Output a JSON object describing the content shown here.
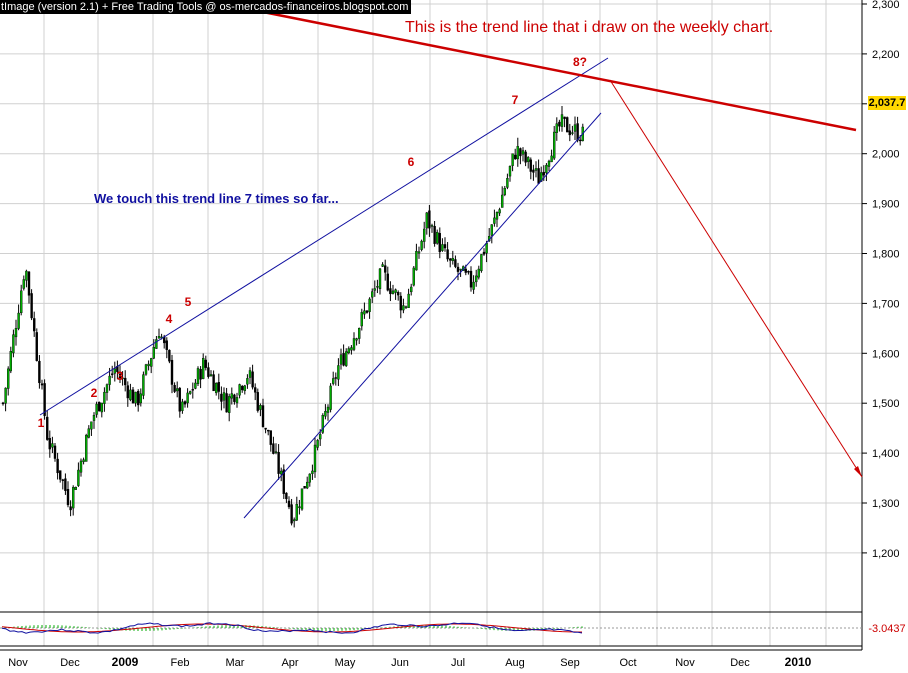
{
  "header": {
    "watermark": "tImage (version 2.1) + Free Trading Tools @ os-mercados-financeiros.blogspot.com"
  },
  "annotations": {
    "trendline_note": "This is the trend line that i draw on the weekly chart.",
    "touch_note": "We touch this trend line 7 times so far...",
    "touch_labels": [
      "1",
      "2",
      "3",
      "4",
      "5",
      "6",
      "7",
      "8?"
    ]
  },
  "price_label": "2,037.7",
  "oscillator_label": "-3.0437",
  "colors": {
    "annotation_red": "#cc0000",
    "trendline_blue": "#1010a0",
    "price_box": "#ffd700",
    "candle_up": "#00aa00",
    "candle_down": "#000000"
  },
  "chart_data": {
    "type": "candlestick",
    "x_axis": {
      "labels": [
        "Nov",
        "Dec",
        "2009",
        "Feb",
        "Mar",
        "Apr",
        "May",
        "Jun",
        "Jul",
        "Aug",
        "Sep",
        "Oct",
        "Nov",
        "Dec",
        "2010"
      ],
      "bold_labels": [
        "2009",
        "2010"
      ]
    },
    "y_axis": {
      "labels": [
        "2,300",
        "2,200",
        "2,100",
        "2,000",
        "1,900",
        "1,800",
        "1,700",
        "1,600",
        "1,500",
        "1,400",
        "1,300",
        "1,200"
      ],
      "ylim": [
        1140,
        2300
      ],
      "position": "right"
    },
    "grid": true,
    "series_points": [
      {
        "date": "Nov",
        "close": 1500
      },
      {
        "date": "Nov",
        "close": 1780
      },
      {
        "date": "Nov",
        "close": 1430
      },
      {
        "date": "Dec",
        "close": 1300
      },
      {
        "date": "Dec",
        "close": 1470
      },
      {
        "date": "Dec",
        "close": 1570
      },
      {
        "date": "2009",
        "close": 1500
      },
      {
        "date": "2009",
        "close": 1650
      },
      {
        "date": "2009",
        "close": 1480
      },
      {
        "date": "Feb",
        "close": 1580
      },
      {
        "date": "Feb",
        "close": 1500
      },
      {
        "date": "Feb",
        "close": 1560
      },
      {
        "date": "Mar",
        "close": 1420
      },
      {
        "date": "Mar",
        "close": 1270
      },
      {
        "date": "Mar",
        "close": 1400
      },
      {
        "date": "Apr",
        "close": 1570
      },
      {
        "date": "Apr",
        "close": 1660
      },
      {
        "date": "May",
        "close": 1760
      },
      {
        "date": "May",
        "close": 1690
      },
      {
        "date": "Jun",
        "close": 1870
      },
      {
        "date": "Jun",
        "close": 1780
      },
      {
        "date": "Jul",
        "close": 1740
      },
      {
        "date": "Jul",
        "close": 1860
      },
      {
        "date": "Aug",
        "close": 2010
      },
      {
        "date": "Aug",
        "close": 1950
      },
      {
        "date": "Sep",
        "close": 2060
      },
      {
        "date": "Sep",
        "close": 2037.7
      }
    ],
    "trendlines": [
      {
        "name": "upper channel",
        "color": "#1010a0",
        "from": {
          "date": "Nov",
          "value": 1430
        },
        "to": {
          "date": "Sep",
          "value": 2150
        }
      },
      {
        "name": "lower channel",
        "color": "#1010a0",
        "from": {
          "date": "Mar",
          "value": 1270
        },
        "to": {
          "date": "Sep",
          "value": 2020
        }
      },
      {
        "name": "weekly trend line",
        "color": "#cc0000",
        "from": {
          "date": "Nov",
          "value": 2300
        },
        "to": {
          "date": "2010",
          "value": 1980
        }
      },
      {
        "name": "projection arrow",
        "color": "#cc0000",
        "from": {
          "date": "Sep",
          "value": 2090
        },
        "to": {
          "date": "2010",
          "value": 1330
        }
      }
    ],
    "oscillator": {
      "last_value": -3.0437
    }
  }
}
